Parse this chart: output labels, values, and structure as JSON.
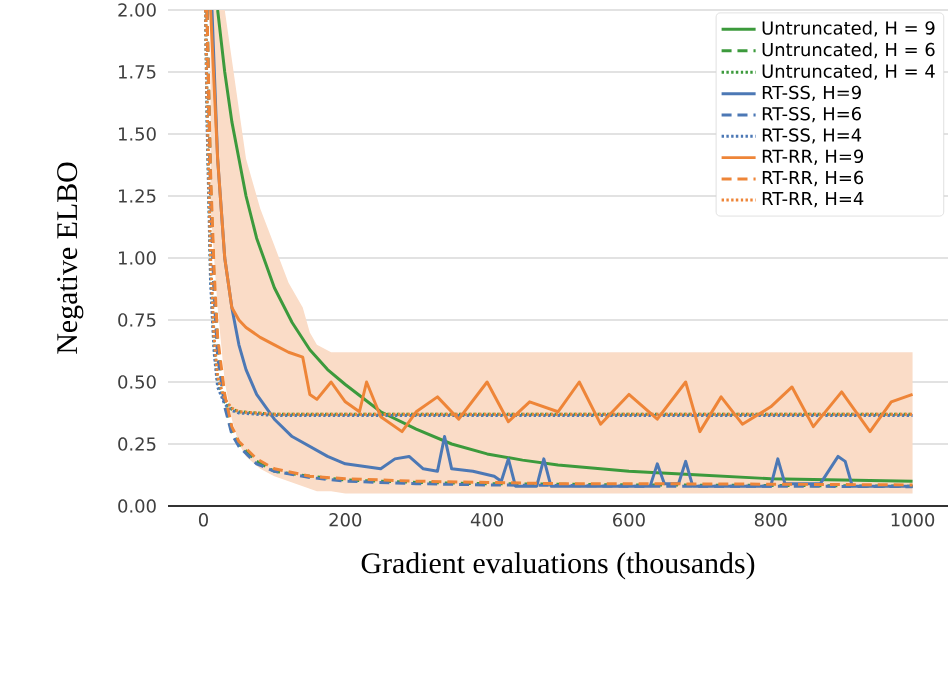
{
  "chart_data": {
    "type": "line",
    "xlabel": "Gradient evaluations (thousands)",
    "ylabel": "Negative ELBO",
    "xlim": [
      -50,
      1050
    ],
    "ylim": [
      0,
      2
    ],
    "xticks": [
      0,
      200,
      400,
      600,
      800,
      1000
    ],
    "yticks": [
      {
        "value": 0,
        "label": "0.00"
      },
      {
        "value": 0.25,
        "label": "0.25"
      },
      {
        "value": 0.5,
        "label": "0.50"
      },
      {
        "value": 0.75,
        "label": "0.75"
      },
      {
        "value": 1,
        "label": "1.00"
      },
      {
        "value": 1.25,
        "label": "1.25"
      },
      {
        "value": 1.5,
        "label": "1.50"
      },
      {
        "value": 1.75,
        "label": "1.75"
      },
      {
        "value": 2,
        "label": "2.00"
      }
    ],
    "grid": "y",
    "legend": "top right",
    "series": [
      {
        "name": "Untruncated, H = 9",
        "color": "#3c9a3c",
        "line_style": "solid",
        "x": [
          20,
          30,
          40,
          50,
          60,
          75,
          100,
          125,
          150,
          175,
          200,
          250,
          300,
          350,
          400,
          450,
          500,
          600,
          700,
          800,
          900,
          1000
        ],
        "values": [
          2.0,
          1.75,
          1.55,
          1.4,
          1.25,
          1.08,
          0.88,
          0.74,
          0.63,
          0.55,
          0.49,
          0.38,
          0.31,
          0.25,
          0.21,
          0.185,
          0.165,
          0.14,
          0.125,
          0.11,
          0.105,
          0.1
        ]
      },
      {
        "name": "Untruncated, H = 6",
        "color": "#3c9a3c",
        "line_style": "dashed",
        "x": [
          5,
          10,
          15,
          20,
          30,
          40,
          50,
          75,
          100,
          150,
          200,
          300,
          400,
          500,
          600,
          800,
          1000
        ],
        "values": [
          2.0,
          1.3,
          0.9,
          0.65,
          0.42,
          0.3,
          0.25,
          0.18,
          0.14,
          0.12,
          0.105,
          0.095,
          0.09,
          0.088,
          0.085,
          0.083,
          0.08
        ]
      },
      {
        "name": "Untruncated, H = 4",
        "color": "#3c9a3c",
        "line_style": "dotted",
        "x": [
          3,
          5,
          10,
          15,
          20,
          30,
          40,
          50,
          75,
          100,
          200,
          400,
          600,
          800,
          1000
        ],
        "values": [
          2.0,
          1.6,
          0.95,
          0.65,
          0.5,
          0.42,
          0.39,
          0.38,
          0.375,
          0.37,
          0.37,
          0.37,
          0.37,
          0.37,
          0.37
        ]
      },
      {
        "name": "RT-SS, H=9",
        "color": "#4c78b5",
        "line_style": "solid",
        "x": [
          12,
          20,
          30,
          40,
          50,
          60,
          75,
          100,
          125,
          150,
          175,
          200,
          225,
          250,
          270,
          290,
          310,
          330,
          340,
          350,
          380,
          410,
          420,
          430,
          440,
          470,
          480,
          490,
          550,
          630,
          640,
          650,
          670,
          680,
          690,
          750,
          800,
          810,
          820,
          870,
          895,
          905,
          915,
          1000
        ],
        "values": [
          2.0,
          1.4,
          1.0,
          0.8,
          0.65,
          0.55,
          0.45,
          0.35,
          0.28,
          0.24,
          0.2,
          0.17,
          0.16,
          0.15,
          0.19,
          0.2,
          0.15,
          0.14,
          0.28,
          0.15,
          0.14,
          0.12,
          0.1,
          0.19,
          0.08,
          0.08,
          0.19,
          0.08,
          0.08,
          0.08,
          0.17,
          0.09,
          0.09,
          0.18,
          0.08,
          0.08,
          0.08,
          0.19,
          0.09,
          0.09,
          0.2,
          0.18,
          0.08,
          0.08
        ]
      },
      {
        "name": "RT-SS, H=6",
        "color": "#4c78b5",
        "line_style": "dashed",
        "x": [
          5,
          10,
          15,
          20,
          30,
          40,
          50,
          75,
          100,
          150,
          200,
          300,
          400,
          500,
          600,
          800,
          1000
        ],
        "values": [
          2.0,
          1.25,
          0.85,
          0.6,
          0.4,
          0.29,
          0.24,
          0.17,
          0.14,
          0.115,
          0.1,
          0.09,
          0.085,
          0.083,
          0.08,
          0.08,
          0.078
        ]
      },
      {
        "name": "RT-SS, H=4",
        "color": "#4c78b5",
        "line_style": "dotted",
        "x": [
          3,
          5,
          10,
          15,
          20,
          30,
          40,
          50,
          75,
          100,
          200,
          400,
          600,
          800,
          1000
        ],
        "values": [
          2.0,
          1.55,
          0.9,
          0.62,
          0.48,
          0.41,
          0.385,
          0.375,
          0.37,
          0.365,
          0.365,
          0.365,
          0.365,
          0.365,
          0.365
        ]
      },
      {
        "name": "RT-RR, H=9",
        "color": "#ee8538",
        "line_style": "solid",
        "x": [
          10,
          20,
          30,
          40,
          50,
          60,
          80,
          100,
          120,
          140,
          150,
          160,
          180,
          200,
          220,
          230,
          250,
          280,
          300,
          330,
          360,
          400,
          430,
          460,
          500,
          530,
          560,
          600,
          640,
          680,
          700,
          730,
          760,
          800,
          830,
          860,
          900,
          940,
          970,
          1000
        ],
        "values": [
          2.0,
          1.4,
          1.0,
          0.8,
          0.75,
          0.72,
          0.68,
          0.65,
          0.62,
          0.6,
          0.45,
          0.43,
          0.5,
          0.42,
          0.38,
          0.5,
          0.36,
          0.3,
          0.38,
          0.44,
          0.35,
          0.5,
          0.34,
          0.42,
          0.38,
          0.5,
          0.33,
          0.45,
          0.35,
          0.5,
          0.3,
          0.44,
          0.33,
          0.4,
          0.48,
          0.32,
          0.46,
          0.3,
          0.42,
          0.45
        ],
        "lower": [
          1.2,
          0.8,
          0.5,
          0.35,
          0.25,
          0.2,
          0.15,
          0.12,
          0.1,
          0.08,
          0.07,
          0.06,
          0.06,
          0.05,
          0.05,
          0.05,
          0.05,
          0.05,
          0.05,
          0.05,
          0.05,
          0.05,
          0.05,
          0.05,
          0.05,
          0.05,
          0.05,
          0.05,
          0.05,
          0.05,
          0.05,
          0.05,
          0.05,
          0.05,
          0.05,
          0.05,
          0.05,
          0.05,
          0.05,
          0.05
        ],
        "upper": [
          2.0,
          2.0,
          2.0,
          1.8,
          1.6,
          1.4,
          1.2,
          1.05,
          0.9,
          0.8,
          0.7,
          0.65,
          0.62,
          0.62,
          0.62,
          0.62,
          0.62,
          0.62,
          0.62,
          0.62,
          0.62,
          0.62,
          0.62,
          0.62,
          0.62,
          0.62,
          0.62,
          0.62,
          0.62,
          0.62,
          0.62,
          0.62,
          0.62,
          0.62,
          0.62,
          0.62,
          0.62,
          0.62,
          0.62,
          0.62
        ]
      },
      {
        "name": "RT-RR, H=6",
        "color": "#ee8538",
        "line_style": "dashed",
        "x": [
          5,
          10,
          15,
          20,
          30,
          40,
          50,
          75,
          100,
          150,
          200,
          300,
          400,
          500,
          600,
          800,
          1000
        ],
        "values": [
          2.0,
          1.35,
          0.95,
          0.68,
          0.45,
          0.32,
          0.26,
          0.19,
          0.15,
          0.12,
          0.11,
          0.1,
          0.095,
          0.09,
          0.09,
          0.088,
          0.085
        ]
      },
      {
        "name": "RT-RR, H=4",
        "color": "#ee8538",
        "line_style": "dotted",
        "x": [
          3,
          5,
          10,
          15,
          20,
          30,
          40,
          50,
          75,
          100,
          200,
          400,
          600,
          800,
          1000
        ],
        "values": [
          2.0,
          1.65,
          1.0,
          0.68,
          0.52,
          0.43,
          0.395,
          0.38,
          0.375,
          0.37,
          0.37,
          0.37,
          0.37,
          0.37,
          0.37
        ]
      }
    ]
  }
}
